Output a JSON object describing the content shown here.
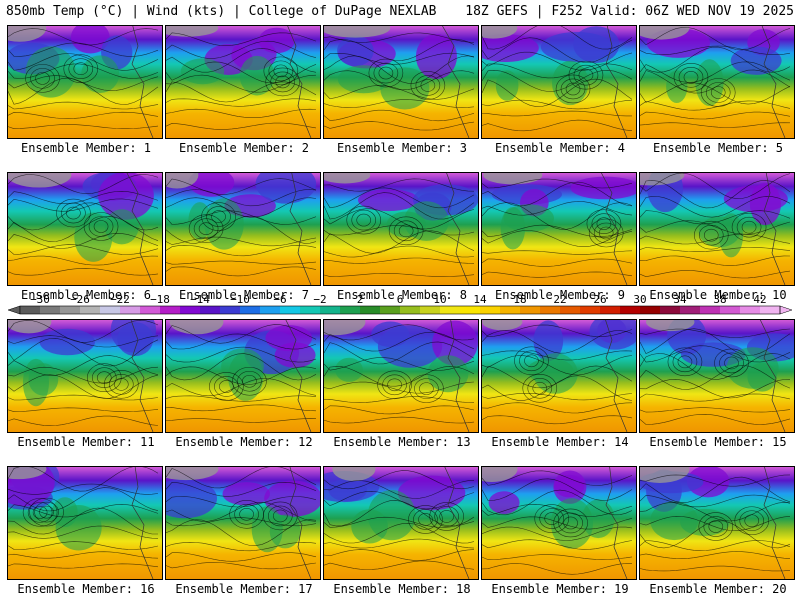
{
  "header": {
    "left": "850mb Temp (°C) | Wind (kts) | College of DuPage NEXLAB",
    "right": "18Z GEFS | F252 Valid: 06Z WED NOV 19 2025"
  },
  "panels": [
    {
      "label": "Ensemble Member: 1"
    },
    {
      "label": "Ensemble Member: 2"
    },
    {
      "label": "Ensemble Member: 3"
    },
    {
      "label": "Ensemble Member: 4"
    },
    {
      "label": "Ensemble Member: 5"
    },
    {
      "label": "Ensemble Member: 6"
    },
    {
      "label": "Ensemble Member: 7"
    },
    {
      "label": "Ensemble Member: 8"
    },
    {
      "label": "Ensemble Member: 9"
    },
    {
      "label": "Ensemble Member: 10"
    },
    {
      "label": "Ensemble Member: 11"
    },
    {
      "label": "Ensemble Member: 12"
    },
    {
      "label": "Ensemble Member: 13"
    },
    {
      "label": "Ensemble Member: 14"
    },
    {
      "label": "Ensemble Member: 15"
    },
    {
      "label": "Ensemble Member: 16"
    },
    {
      "label": "Ensemble Member: 17"
    },
    {
      "label": "Ensemble Member: 18"
    },
    {
      "label": "Ensemble Member: 19"
    },
    {
      "label": "Ensemble Member: 20"
    }
  ],
  "colorbar": {
    "tick_labels": [
      "−30",
      "−26",
      "−22",
      "−18",
      "−14",
      "−10",
      "−6",
      "−2",
      "2",
      "6",
      "10",
      "14",
      "18",
      "22",
      "26",
      "30",
      "34",
      "38",
      "42"
    ],
    "colors": [
      "#5c5c5c",
      "#7a7a7a",
      "#979797",
      "#b4b4b4",
      "#c8c8e6",
      "#d79be6",
      "#d25ad7",
      "#b41ec8",
      "#820ad2",
      "#5a14c8",
      "#3c3cd2",
      "#1e6ee6",
      "#1ea0f0",
      "#14c8e6",
      "#14c8b4",
      "#14b48c",
      "#1ea050",
      "#288c28",
      "#5aa01e",
      "#96be1e",
      "#c8d21e",
      "#f0e614",
      "#fae600",
      "#fad200",
      "#f5b400",
      "#f09600",
      "#eb7800",
      "#e65a00",
      "#e13c00",
      "#d21e00",
      "#b40000",
      "#960000",
      "#8c0a3c",
      "#a01e78",
      "#be32b4",
      "#d25ad2",
      "#e68ce6",
      "#f0b4f0"
    ]
  }
}
